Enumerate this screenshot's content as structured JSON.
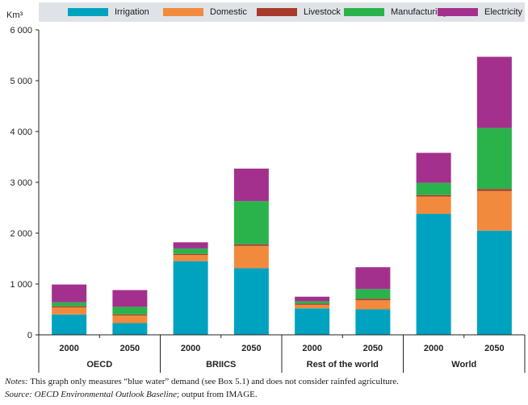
{
  "chart_data": {
    "type": "bar",
    "stacked": true,
    "ylabel": "Km³",
    "ylim": [
      0,
      6000
    ],
    "yticks": [
      0,
      1000,
      2000,
      3000,
      4000,
      5000,
      6000
    ],
    "ytick_labels": [
      "0",
      "1 000",
      "2 000",
      "3 000",
      "4 000",
      "5 000",
      "6 000"
    ],
    "grid": false,
    "legend_position": "top",
    "groups": [
      {
        "label": "OECD",
        "years": [
          "2000",
          "2050"
        ]
      },
      {
        "label": "BRIICS",
        "years": [
          "2000",
          "2050"
        ]
      },
      {
        "label": "Rest of the world",
        "years": [
          "2000",
          "2050"
        ]
      },
      {
        "label": "World",
        "years": [
          "2000",
          "2050"
        ]
      }
    ],
    "categories": [
      "OECD 2000",
      "OECD 2050",
      "BRIICS 2000",
      "BRIICS 2050",
      "Rest of the world 2000",
      "Rest of the world 2050",
      "World 2000",
      "World 2050"
    ],
    "series": [
      {
        "name": "Irrigation",
        "color": "#00a3bf",
        "values": [
          400,
          230,
          1450,
          1310,
          520,
          500,
          2380,
          2050
        ]
      },
      {
        "name": "Domestic",
        "color": "#f28a3d",
        "values": [
          140,
          150,
          120,
          440,
          70,
          180,
          340,
          780
        ]
      },
      {
        "name": "Livestock",
        "color": "#a83a2c",
        "values": [
          20,
          20,
          20,
          30,
          20,
          30,
          30,
          40
        ]
      },
      {
        "name": "Manufacturing",
        "color": "#2ab24b",
        "values": [
          80,
          150,
          110,
          850,
          50,
          190,
          240,
          1200
        ]
      },
      {
        "name": "Electricity",
        "color": "#a4308e",
        "values": [
          350,
          330,
          120,
          640,
          90,
          430,
          590,
          1400
        ]
      }
    ]
  },
  "notes": {
    "notes_label": "Notes:",
    "notes_text": " This graph only measures “blue water” demand (see Box 5.1) and does not consider rainfed agriculture.",
    "source_label": "Source:",
    "source_italic": " OECD Environmental Outlook Baseline",
    "source_text": "; output from IMAGE."
  }
}
